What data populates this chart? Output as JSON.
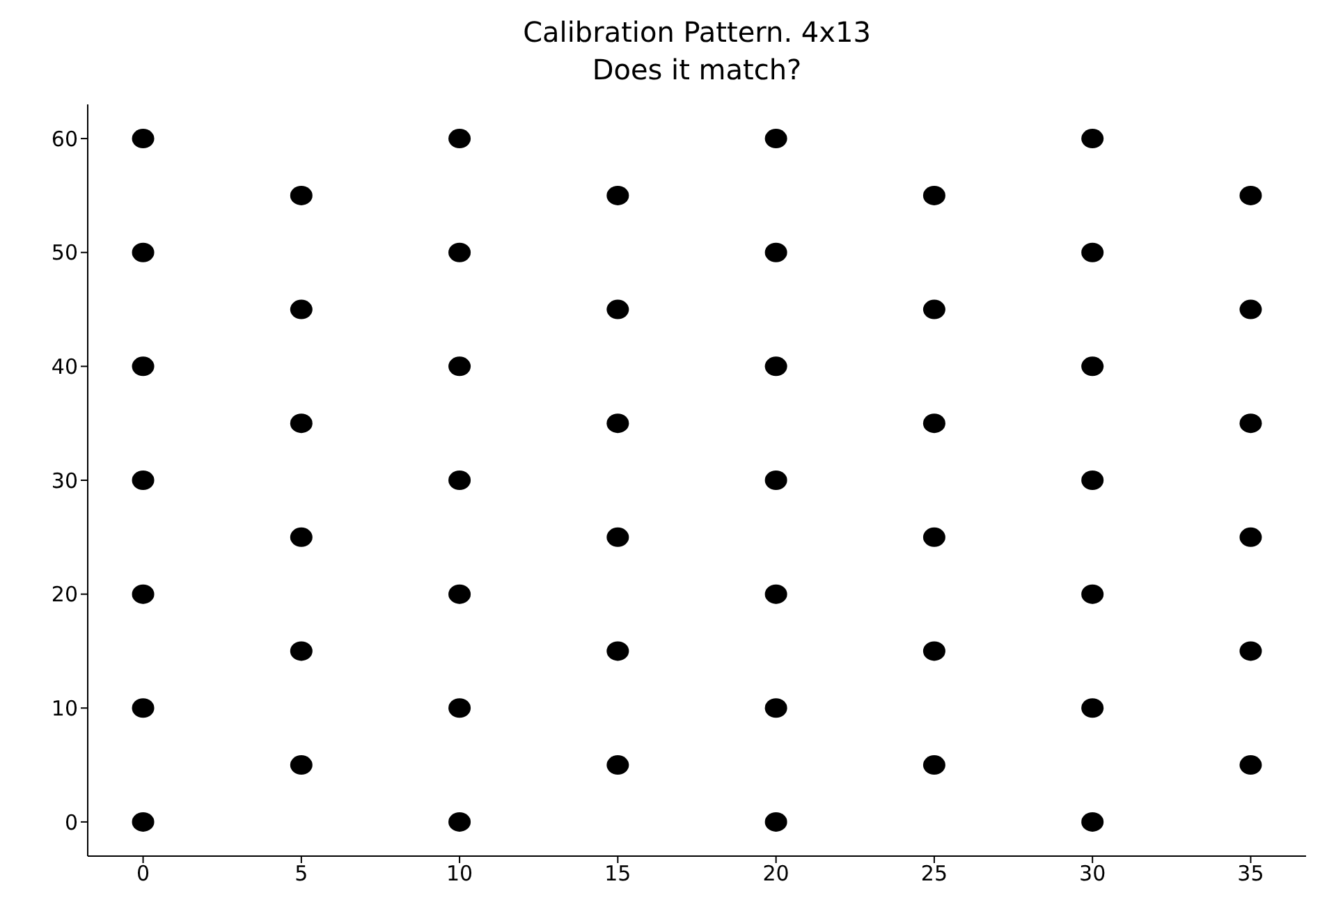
{
  "chart_data": {
    "type": "scatter",
    "title": "Calibration Pattern. 4x13\nDoes it match?",
    "xlim": [
      -1.75,
      36.75
    ],
    "ylim": [
      -3,
      63
    ],
    "xticks": [
      0,
      5,
      10,
      15,
      20,
      25,
      30,
      35
    ],
    "yticks": [
      0,
      10,
      20,
      30,
      40,
      50,
      60
    ],
    "grid": false,
    "legend": false,
    "marker": "circle",
    "series": [
      {
        "color": "#000000",
        "x": [
          0,
          0,
          0,
          0,
          0,
          0,
          0,
          10,
          10,
          10,
          10,
          10,
          10,
          10,
          20,
          20,
          20,
          20,
          20,
          20,
          20,
          30,
          30,
          30,
          30,
          30,
          30,
          30,
          5,
          5,
          5,
          5,
          5,
          5,
          15,
          15,
          15,
          15,
          15,
          15,
          25,
          25,
          25,
          25,
          25,
          25,
          35,
          35,
          35,
          35,
          35,
          35
        ],
        "values": [
          0,
          10,
          20,
          30,
          40,
          50,
          60,
          0,
          10,
          20,
          30,
          40,
          50,
          60,
          0,
          10,
          20,
          30,
          40,
          50,
          60,
          0,
          10,
          20,
          30,
          40,
          50,
          60,
          5,
          15,
          25,
          35,
          45,
          55,
          5,
          15,
          25,
          35,
          45,
          55,
          5,
          15,
          25,
          35,
          45,
          55,
          5,
          15,
          25,
          35,
          45,
          55
        ]
      }
    ]
  }
}
